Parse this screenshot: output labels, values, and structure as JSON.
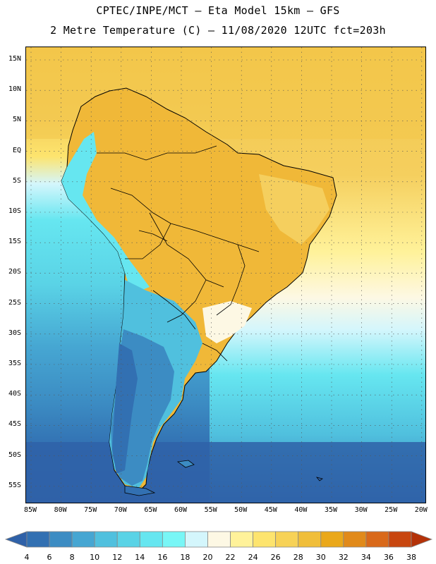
{
  "header": {
    "line1": "CPTEC/INPE/MCT –  Eta Model 15km – GFS",
    "line2": "2 Metre Temperature (C) – 11/08/2020 12UTC fct=203h"
  },
  "map": {
    "lat_labels": [
      "15N",
      "10N",
      "5N",
      "EQ",
      "5S",
      "10S",
      "15S",
      "20S",
      "25S",
      "30S",
      "35S",
      "40S",
      "45S",
      "50S",
      "55S"
    ],
    "lon_labels": [
      "85W",
      "80W",
      "75W",
      "70W",
      "65W",
      "60W",
      "55W",
      "50W",
      "45W",
      "40W",
      "35W",
      "30W",
      "25W",
      "20W"
    ],
    "lat_range": [
      17,
      -58
    ],
    "lon_range": [
      -86,
      -20
    ],
    "gridlines": "dotted",
    "land_border_color": "#000000"
  },
  "colorbar": {
    "levels": [
      "4",
      "6",
      "8",
      "10",
      "12",
      "14",
      "16",
      "18",
      "20",
      "22",
      "24",
      "26",
      "28",
      "30",
      "32",
      "34",
      "36",
      "38"
    ],
    "colors": [
      "#2f61a8",
      "#3270b2",
      "#3c8cc3",
      "#46a6d2",
      "#50c0de",
      "#5ad3e6",
      "#66e6f0",
      "#78f6f6",
      "#d4f6fc",
      "#fdf8e4",
      "#fff29a",
      "#fde46e",
      "#f7d257",
      "#f0be3a",
      "#eaa81a",
      "#e18a1a",
      "#d9691a",
      "#c8460f",
      "#b43208"
    ]
  }
}
